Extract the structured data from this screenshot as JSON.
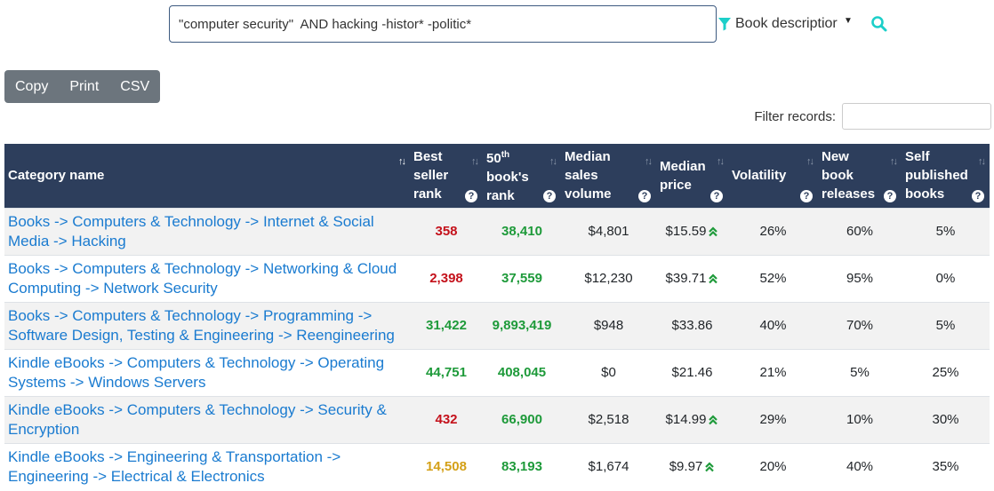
{
  "search": {
    "query": "\"computer security\"  AND hacking -histor* -politic*",
    "filter_field": "Book descriptior"
  },
  "toolbar": {
    "copy": "Copy",
    "print": "Print",
    "csv": "CSV"
  },
  "filter": {
    "label": "Filter records:"
  },
  "table": {
    "headers": {
      "category": "Category name",
      "best_seller_rank": "Best seller rank",
      "rank50_prefix": "50",
      "rank50_sup": "th",
      "rank50_suffix": "book's rank",
      "median_sales": "Median sales volume",
      "median_price": "Median price",
      "volatility": "Volatility",
      "new_releases": "New book releases",
      "self_published": "Self published books"
    },
    "rows": [
      {
        "category": "Books -> Computers & Technology -> Internet & Social Media -> Hacking",
        "best": "358",
        "best_color": "red",
        "rank50": "38,410",
        "rank50_color": "green",
        "sales": "$4,801",
        "price": "$15.59",
        "price_up": true,
        "volatility": "26%",
        "new": "60%",
        "self": "5%"
      },
      {
        "category": "Books -> Computers & Technology -> Networking & Cloud Computing -> Network Security",
        "best": "2,398",
        "best_color": "red",
        "rank50": "37,559",
        "rank50_color": "green",
        "sales": "$12,230",
        "price": "$39.71",
        "price_up": true,
        "volatility": "52%",
        "new": "95%",
        "self": "0%"
      },
      {
        "category": "Books -> Computers & Technology -> Programming -> Software Design, Testing & Engineering -> Reengineering",
        "best": "31,422",
        "best_color": "green",
        "rank50": "9,893,419",
        "rank50_color": "green",
        "sales": "$948",
        "price": "$33.86",
        "price_up": false,
        "volatility": "40%",
        "new": "70%",
        "self": "5%"
      },
      {
        "category": "Kindle eBooks -> Computers & Technology -> Operating Systems -> Windows Servers",
        "best": "44,751",
        "best_color": "green",
        "rank50": "408,045",
        "rank50_color": "green",
        "sales": "$0",
        "price": "$21.46",
        "price_up": false,
        "volatility": "21%",
        "new": "5%",
        "self": "25%"
      },
      {
        "category": "Kindle eBooks -> Computers & Technology -> Security & Encryption",
        "best": "432",
        "best_color": "red",
        "rank50": "66,900",
        "rank50_color": "green",
        "sales": "$2,518",
        "price": "$14.99",
        "price_up": true,
        "volatility": "29%",
        "new": "10%",
        "self": "30%"
      },
      {
        "category": "Kindle eBooks -> Engineering & Transportation -> Engineering -> Electrical & Electronics",
        "best": "14,508",
        "best_color": "orange",
        "rank50": "83,193",
        "rank50_color": "green",
        "sales": "$1,674",
        "price": "$9.97",
        "price_up": true,
        "volatility": "20%",
        "new": "40%",
        "self": "35%"
      }
    ]
  },
  "colors": {
    "header_bg": "#2d3e5c",
    "link": "#1a7bd0",
    "rank_red": "#c4111b",
    "rank_green": "#1e9a3a",
    "rank_orange": "#d4a017",
    "accent": "#1ccfc9"
  }
}
